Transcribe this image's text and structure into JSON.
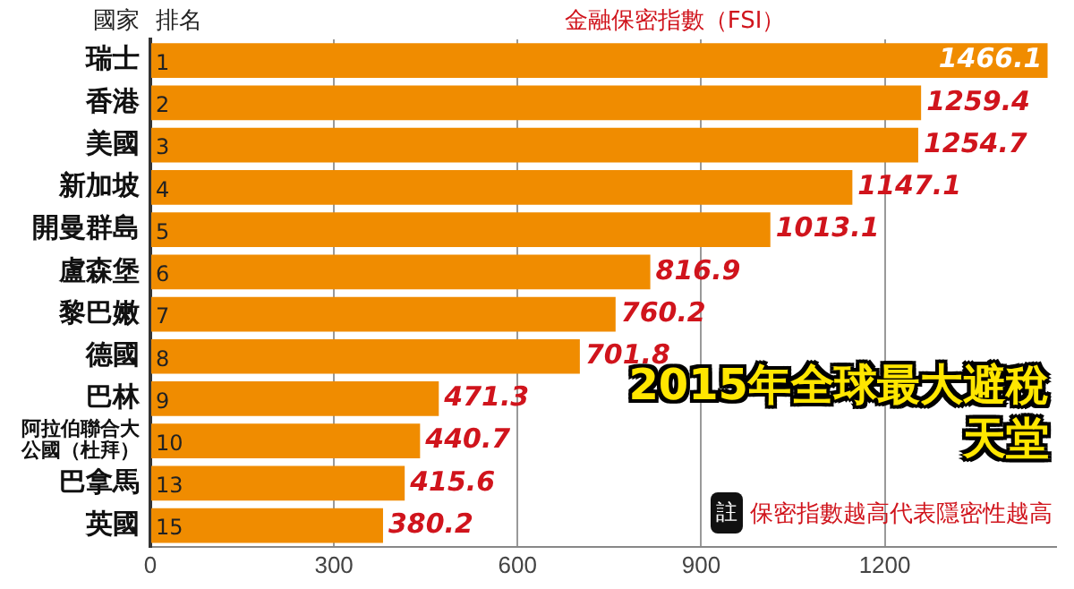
{
  "chart_data": {
    "type": "bar",
    "orientation": "horizontal",
    "title": "2015年全球最大避稅天堂",
    "xlabel": "金融保密指數（FSI）",
    "ylabel": "國家",
    "categories": [
      "瑞士",
      "香港",
      "美國",
      "新加坡",
      "開曼群島",
      "盧森堡",
      "黎巴嫩",
      "德國",
      "巴林",
      "阿拉伯聯合大公國（杜拜）",
      "巴拿馬",
      "英國"
    ],
    "values": [
      1466.1,
      1259.4,
      1254.7,
      1147.1,
      1013.1,
      816.9,
      760.2,
      701.8,
      471.3,
      440.7,
      415.6,
      380.2
    ],
    "color": "#f08c00",
    "data_labels": true,
    "xlim": [
      0,
      1480
    ],
    "xticks": [
      0,
      300,
      600,
      900,
      1200
    ],
    "grid": "x",
    "annotations": [
      "排名",
      "註",
      "保密指數越高代表隱密性越高",
      {
        "text": "1",
        "y": "瑞士"
      },
      {
        "text": "2",
        "y": "香港"
      },
      {
        "text": "3",
        "y": "美國"
      },
      {
        "text": "4",
        "y": "新加坡"
      },
      {
        "text": "5",
        "y": "開曼群島"
      },
      {
        "text": "6",
        "y": "盧森堡"
      },
      {
        "text": "7",
        "y": "黎巴嫩"
      },
      {
        "text": "8",
        "y": "德國"
      },
      {
        "text": "9",
        "y": "巴林"
      },
      {
        "text": "10",
        "y": "阿拉伯聯合大公國（杜拜）"
      },
      {
        "text": "13",
        "y": "巴拿馬"
      },
      {
        "text": "15",
        "y": "英國"
      }
    ]
  }
}
